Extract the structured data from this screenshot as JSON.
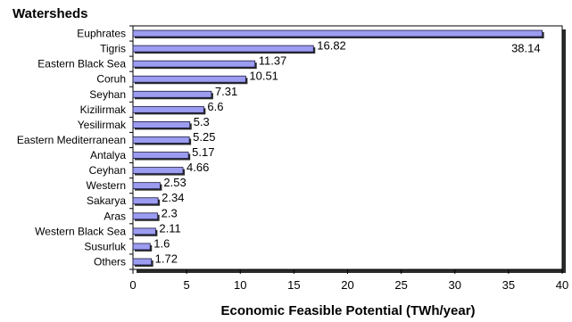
{
  "chart_data": {
    "type": "bar",
    "orientation": "horizontal",
    "title": "Watersheds",
    "xlabel": "Economic Feasible Potential (TWh/year)",
    "ylabel": "",
    "xlim": [
      0,
      40
    ],
    "xticks": [
      0,
      5,
      10,
      15,
      20,
      25,
      30,
      35,
      40
    ],
    "categories": [
      "Euphrates",
      "Tigris",
      "Eastern Black Sea",
      "Coruh",
      "Seyhan",
      "Kizilirmak",
      "Yesilirmak",
      "Eastern Mediterranean",
      "Antalya",
      "Ceyhan",
      "Western",
      "Sakarya",
      "Aras",
      "Western Black Sea",
      "Susurluk",
      "Others"
    ],
    "values": [
      38.14,
      16.82,
      11.37,
      10.51,
      7.31,
      6.6,
      5.3,
      5.25,
      5.17,
      4.66,
      2.53,
      2.34,
      2.3,
      2.11,
      1.6,
      1.72
    ],
    "value_labels": [
      "38.14",
      "16.82",
      "11.37",
      "10.51",
      "7.31",
      "6.6",
      "5.3",
      "5.25",
      "5.17",
      "4.66",
      "2.53",
      "2.34",
      "2.3",
      "2.11",
      "1.6",
      "1.72"
    ],
    "grid": false,
    "legend": "none",
    "colors": {
      "bar": "#9c9cf0",
      "bar_edge": "#1a1a40",
      "shadow": "#2a2a2a"
    }
  }
}
